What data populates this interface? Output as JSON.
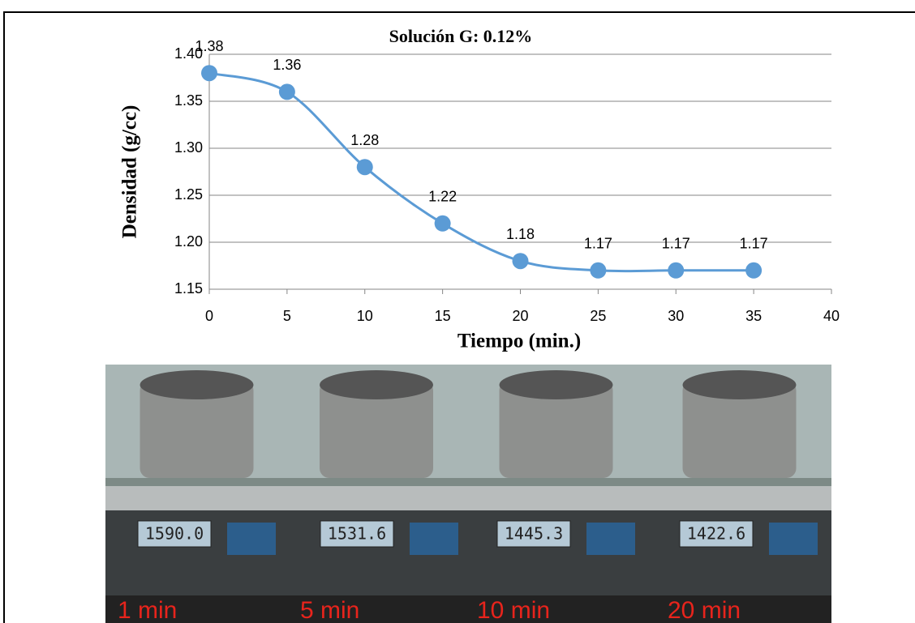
{
  "chart_data": {
    "type": "line",
    "title": "Solución G: 0.12%",
    "x_label": "Tiempo (min.)",
    "y_label": "Densidad (g/cc)",
    "x": [
      0,
      5,
      10,
      15,
      20,
      25,
      30,
      35
    ],
    "series": [
      {
        "color": "#5b9bd5",
        "values": [
          1.38,
          1.36,
          1.28,
          1.22,
          1.18,
          1.17,
          1.17,
          1.17
        ]
      }
    ],
    "xlim": [
      0,
      40
    ],
    "xticks": [
      0,
      5,
      10,
      15,
      20,
      25,
      30,
      35,
      40
    ],
    "ylim": [
      1.15,
      1.4
    ],
    "yticks": [
      {
        "value": 1.4,
        "label": "1.40"
      },
      1.35,
      {
        "value": 1.3,
        "label": "1.30"
      },
      1.25,
      {
        "value": 1.2,
        "label": "1.20"
      },
      1.15
    ],
    "grid": true,
    "smooth": true
  },
  "photos": {
    "captions": [
      "1 min",
      "5 min",
      "10 min",
      "20 min"
    ],
    "readings": [
      "1590.0",
      "1531.6",
      "1445.3",
      "1422.6"
    ]
  }
}
